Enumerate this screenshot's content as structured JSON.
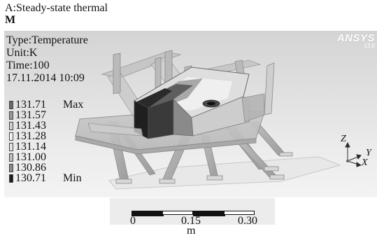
{
  "header": {
    "title_line1": "A:Steady-state thermal",
    "title_line2": "M"
  },
  "info": {
    "type": "Type:Temperature",
    "unit": "Unit:K",
    "time": "Time:100",
    "timestamp": "17.11.2014 10:09"
  },
  "legend": {
    "entries": [
      {
        "value": "131.71",
        "tag": "Max",
        "color": "#6a6a6a"
      },
      {
        "value": "131.57",
        "tag": "",
        "color": "#9a9a9a"
      },
      {
        "value": "131.43",
        "tag": "",
        "color": "#cfcfcf"
      },
      {
        "value": "131.28",
        "tag": "",
        "color": "#f4f4f4"
      },
      {
        "value": "131.14",
        "tag": "",
        "color": "#e2e2e2"
      },
      {
        "value": "131.00",
        "tag": "",
        "color": "#bdbdbd"
      },
      {
        "value": "130.86",
        "tag": "",
        "color": "#8a8a8a"
      },
      {
        "value": "130.71",
        "tag": "Min",
        "color": "#1c1c1c"
      }
    ]
  },
  "logo": {
    "text": "ANSYS",
    "version": "13.0"
  },
  "triad": {
    "z": "Z",
    "y": "Y",
    "x": "X"
  },
  "scale": {
    "ticks": [
      "0",
      "0.15",
      "0.30"
    ],
    "unit": "m"
  }
}
